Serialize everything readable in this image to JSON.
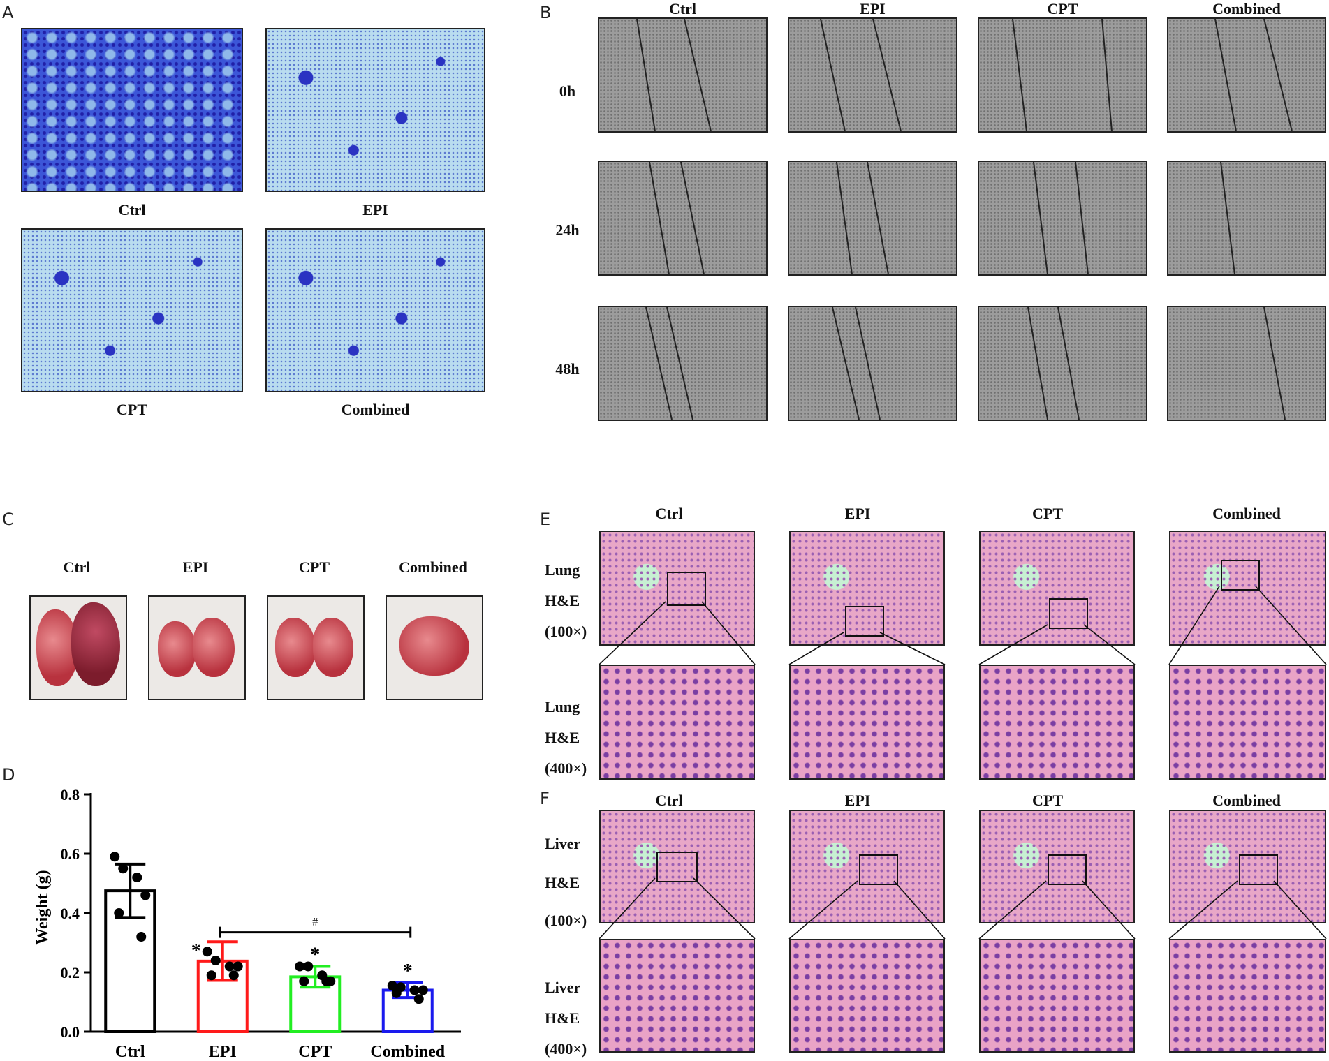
{
  "panels": {
    "a": "A",
    "b": "B",
    "c": "C",
    "d": "D",
    "e": "E",
    "f": "F"
  },
  "groups": {
    "ctrl": "Ctrl",
    "epi": "EPI",
    "cpt": "CPT",
    "combined": "Combined"
  },
  "times": {
    "t0": "0h",
    "t24": "24h",
    "t48": "48h"
  },
  "he_labels": {
    "lung": "Lung",
    "liver": "Liver",
    "stain": "H&E",
    "mag_low": "(100×)",
    "mag_high": "(400×)"
  },
  "chart_data": {
    "type": "bar",
    "ylabel": "Weight (g)",
    "ylim": [
      0,
      0.8
    ],
    "yticks": [
      "0.0",
      "0.2",
      "0.4",
      "0.6",
      "0.8"
    ],
    "categories": [
      "Ctrl",
      "EPI",
      "CPT",
      "Combined"
    ],
    "values": [
      0.475,
      0.238,
      0.185,
      0.14
    ],
    "sd": [
      0.09,
      0.065,
      0.035,
      0.025
    ],
    "points": [
      [
        0.59,
        0.55,
        0.52,
        0.46,
        0.4,
        0.32
      ],
      [
        0.27,
        0.24,
        0.22,
        0.22,
        0.19,
        0.19
      ],
      [
        0.22,
        0.22,
        0.19,
        0.17,
        0.17,
        0.17
      ],
      [
        0.155,
        0.15,
        0.14,
        0.14,
        0.13,
        0.11
      ]
    ],
    "colors": [
      "#000000",
      "#ff1a1a",
      "#22ee22",
      "#1a1aee"
    ],
    "annotations": [
      "",
      "*",
      "*",
      "*"
    ],
    "bracket_label": "#"
  }
}
